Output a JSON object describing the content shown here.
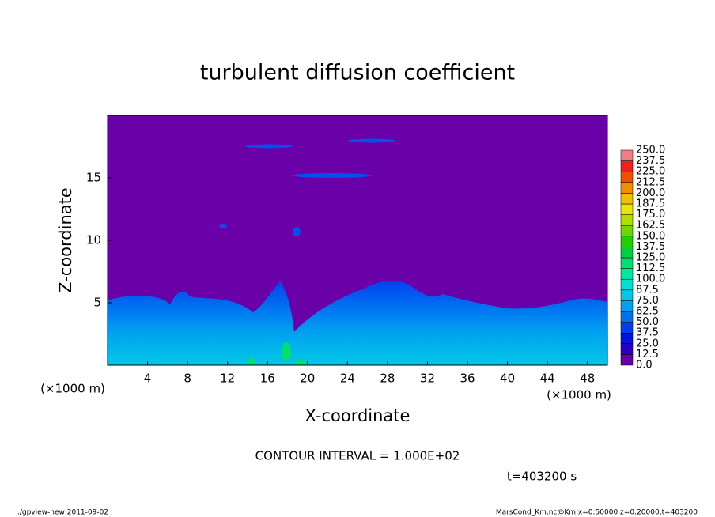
{
  "chart_data": {
    "type": "contour",
    "title": "turbulent diffusion coefficient",
    "xlabel": "X-coordinate",
    "ylabel": "Z-coordinate",
    "x_unit": "(×1000 m)",
    "xlim": [
      0,
      50
    ],
    "xticks": [
      4,
      8,
      12,
      16,
      20,
      24,
      28,
      32,
      36,
      40,
      44,
      48
    ],
    "ylim": [
      0,
      20
    ],
    "yticks": [
      5,
      10,
      15
    ],
    "background_color": "#6a00a8",
    "colorbar": {
      "levels": [
        {
          "value": 0,
          "label": "0.0"
        },
        {
          "value": 12.5,
          "label": "12.5"
        },
        {
          "value": 25,
          "label": "25.0"
        },
        {
          "value": 37.5,
          "label": "37.5"
        },
        {
          "value": 50,
          "label": "50.0"
        },
        {
          "value": 62.5,
          "label": "62.5"
        },
        {
          "value": 75,
          "label": "75.0"
        },
        {
          "value": 87.5,
          "label": "87.5"
        },
        {
          "value": 100,
          "label": "100.0"
        },
        {
          "value": 112.5,
          "label": "112.5"
        },
        {
          "value": 125,
          "label": "125.0"
        },
        {
          "value": 137.5,
          "label": "137.5"
        },
        {
          "value": 150,
          "label": "150.0"
        },
        {
          "value": 162.5,
          "label": "162.5"
        },
        {
          "value": 175,
          "label": "175.0"
        },
        {
          "value": 187.5,
          "label": "187.5"
        },
        {
          "value": 200,
          "label": "200.0"
        },
        {
          "value": 212.5,
          "label": "212.5"
        },
        {
          "value": 225,
          "label": "225.0"
        },
        {
          "value": 237.5,
          "label": "237.5"
        },
        {
          "value": 250,
          "label": "250.0"
        }
      ],
      "colors": [
        "#6a00a8",
        "#2800c8",
        "#0014e0",
        "#0040f0",
        "#0070f0",
        "#00a0f0",
        "#00c8e8",
        "#00e0d0",
        "#00e8a0",
        "#00e070",
        "#00d040",
        "#20d000",
        "#70d800",
        "#b0e000",
        "#e8e800",
        "#f0c000",
        "#f09000",
        "#f05000",
        "#f02020",
        "#f08080"
      ]
    },
    "contour_interval": "CONTOUR INTERVAL = 1.000E+02",
    "time": "t=403200 s",
    "footer_left": "./gpview-new  2011-09-02",
    "footer_right": "MarsCond_Km.nc@Km,x=0:50000,z=0:20000,t=403200"
  }
}
